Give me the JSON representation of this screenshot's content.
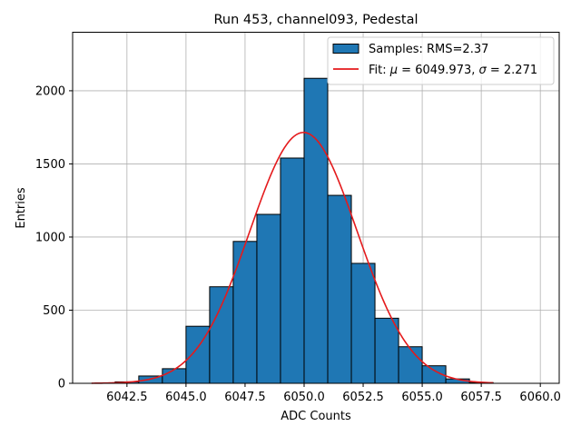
{
  "chart_data": {
    "type": "bar",
    "title": "Run 453, channel093, Pedestal",
    "xlabel": "ADC Counts",
    "ylabel": "Entries",
    "xlim": [
      6040.2,
      6060.8
    ],
    "ylim": [
      0,
      2400
    ],
    "grid": true,
    "legend_position": "top-right",
    "bin_edges": [
      6042,
      6043,
      6044,
      6045,
      6046,
      6047,
      6048,
      6049,
      6050,
      6051,
      6052,
      6053,
      6054,
      6055,
      6056,
      6057,
      6058
    ],
    "values": [
      10,
      50,
      100,
      390,
      660,
      970,
      1155,
      1540,
      2085,
      1285,
      820,
      445,
      250,
      120,
      30,
      5
    ],
    "x_ticks": [
      {
        "value": 6042.5,
        "label": "6042.5"
      },
      {
        "value": 6045.0,
        "label": "6045.0"
      },
      {
        "value": 6047.5,
        "label": "6047.5"
      },
      {
        "value": 6050.0,
        "label": "6050.0"
      },
      {
        "value": 6052.5,
        "label": "6052.5"
      },
      {
        "value": 6055.0,
        "label": "6055.0"
      },
      {
        "value": 6057.5,
        "label": "6057.5"
      },
      {
        "value": 6060.0,
        "label": "6060.0"
      }
    ],
    "y_ticks": [
      {
        "value": 0,
        "label": "0"
      },
      {
        "value": 500,
        "label": "500"
      },
      {
        "value": 1000,
        "label": "1000"
      },
      {
        "value": 1500,
        "label": "1500"
      },
      {
        "value": 2000,
        "label": "2000"
      }
    ],
    "fit": {
      "mu": 6049.973,
      "sigma": 2.271,
      "amplitude": 1715,
      "x_range": [
        6041,
        6058
      ]
    },
    "legend": [
      {
        "kind": "patch",
        "label": "Samples: RMS=2.37"
      },
      {
        "kind": "line",
        "label_prefix": "Fit: ",
        "label_mu_symbol": "μ",
        "label_mu_rest": " = 6049.973, ",
        "label_sigma_symbol": "σ",
        "label_sigma_rest": " = 2.271"
      }
    ],
    "colors": {
      "bar_fill": "#1f77b4",
      "bar_edge": "#000000",
      "fit_line": "#e41a1c",
      "grid": "#b0b0b0"
    }
  }
}
